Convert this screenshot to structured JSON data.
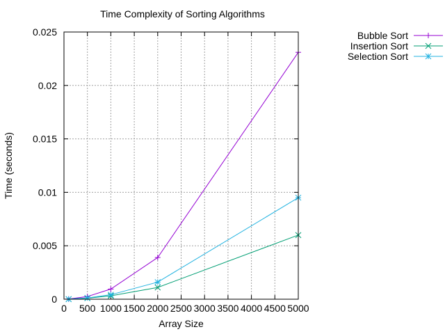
{
  "chart_data": {
    "type": "line",
    "title": "Time Complexity of Sorting Algorithms",
    "xlabel": "Array Size",
    "ylabel": "Time (seconds)",
    "xlim": [
      0,
      5000
    ],
    "ylim": [
      0,
      0.025
    ],
    "x_ticks": [
      0,
      500,
      1000,
      1500,
      2000,
      2500,
      3000,
      3500,
      4000,
      4500,
      5000
    ],
    "x_tick_labels": [
      "0",
      "500",
      "1000",
      "1500",
      "2000",
      "2500",
      "3000",
      "3500",
      "4000",
      "4500",
      "5000"
    ],
    "y_ticks": [
      0,
      0.005,
      0.01,
      0.015,
      0.02,
      0.025
    ],
    "y_tick_labels": [
      "0",
      "0.005",
      "0.01",
      "0.015",
      "0.02",
      "0.025"
    ],
    "grid": true,
    "legend_position": "outside-top-right",
    "x": [
      100,
      500,
      1000,
      2000,
      5000
    ],
    "series": [
      {
        "name": "Bubble Sort",
        "color": "#9400d3",
        "marker": "plus",
        "values": [
          2e-05,
          0.00025,
          0.00095,
          0.0039,
          0.0231
        ]
      },
      {
        "name": "Insertion Sort",
        "color": "#009e73",
        "marker": "cross",
        "values": [
          1e-05,
          0.0001,
          0.00032,
          0.0011,
          0.006
        ]
      },
      {
        "name": "Selection Sort",
        "color": "#20b2e0",
        "marker": "star",
        "values": [
          1e-05,
          0.00012,
          0.00042,
          0.0016,
          0.0095
        ]
      }
    ]
  }
}
